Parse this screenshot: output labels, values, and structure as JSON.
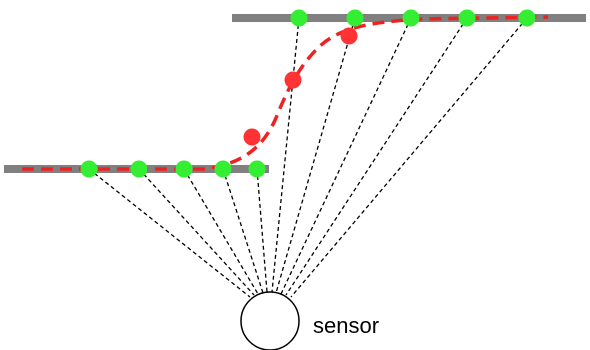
{
  "diagram": {
    "sensor_label": "sensor",
    "colors": {
      "surface": "#808080",
      "beam": "#000000",
      "point_on_surface": "#33ee33",
      "point_interpolated": "#ff3333",
      "fitted_curve": "#ee2222",
      "sensor_fill": "#ffffff",
      "sensor_stroke": "#000000"
    },
    "surfaces": [
      "lower-surface",
      "upper-surface"
    ],
    "measurement_points": [
      {
        "id": "g1",
        "kind": "on-surface",
        "surface": "lower"
      },
      {
        "id": "g2",
        "kind": "on-surface",
        "surface": "lower"
      },
      {
        "id": "g3",
        "kind": "on-surface",
        "surface": "lower"
      },
      {
        "id": "g4",
        "kind": "on-surface",
        "surface": "lower"
      },
      {
        "id": "g5",
        "kind": "on-surface",
        "surface": "lower"
      },
      {
        "id": "r1",
        "kind": "interpolated",
        "surface": "step"
      },
      {
        "id": "r2",
        "kind": "interpolated",
        "surface": "step"
      },
      {
        "id": "r3",
        "kind": "interpolated",
        "surface": "step"
      },
      {
        "id": "g6",
        "kind": "on-surface",
        "surface": "upper"
      },
      {
        "id": "g7",
        "kind": "on-surface",
        "surface": "upper"
      },
      {
        "id": "g8",
        "kind": "on-surface",
        "surface": "upper"
      },
      {
        "id": "g9",
        "kind": "on-surface",
        "surface": "upper"
      },
      {
        "id": "g10",
        "kind": "on-surface",
        "surface": "upper"
      }
    ]
  }
}
